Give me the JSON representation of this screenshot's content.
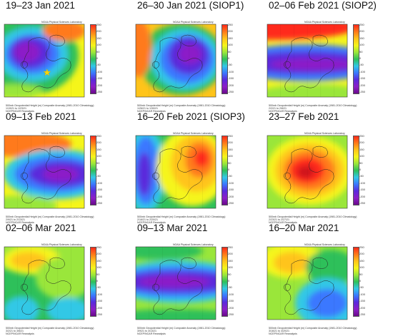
{
  "panels": [
    {
      "title": "19–23 Jan 2021",
      "caption": "500mb Geopotential Height (m) Composite Anomaly (1981-2010 Climatology)",
      "dates": "1/19/21 to 1/23/21",
      "reanalysis": "NCEP/NCAR Reanalysis",
      "source": "NOAA Physical Sciences Laboratory",
      "pattern": "purple-low-west",
      "star": true
    },
    {
      "title": "26–30 Jan 2021 (SIOP1)",
      "caption": "500mb Geopotential Height (m) Composite Anomaly (1981-2010 Climatology)",
      "dates": "1/26/21 to 1/30/21",
      "reanalysis": "NCEP/NCAR Reanalysis",
      "source": "NOAA Physical Sciences Laboratory",
      "pattern": "purple-low-center",
      "star": false
    },
    {
      "title": "02–06 Feb 2021 (SIOP2)",
      "caption": "500mb Geopotential Height (m) Composite Anomaly (1981-2010 Climatology)",
      "dates": "2/2/21 to 2/6/21",
      "reanalysis": "NCEP/NCAR Reanalysis",
      "source": "NOAA Physical Sciences Laboratory",
      "pattern": "zonal-band",
      "star": false
    },
    {
      "title": "09–13 Feb 2021",
      "caption": "500mb Geopotential Height (m) Composite Anomaly (1981-2010 Climatology)",
      "dates": "2/9/21 to 2/13/21",
      "reanalysis": "NCEP/NCAR Reanalysis",
      "source": "NOAA Physical Sciences Laboratory",
      "pattern": "purple-low-east",
      "star": false
    },
    {
      "title": "16–20 Feb 2021 (SIOP3)",
      "caption": "500mb Geopotential Height (m) Composite Anomaly (1981-2010 Climatology)",
      "dates": "2/16/21 to 2/20/21",
      "reanalysis": "NCEP/NCAR Reanalysis",
      "source": "NOAA Physical Sciences Laboratory",
      "pattern": "dipole",
      "star": false
    },
    {
      "title": "23–27 Feb 2021",
      "caption": "500mb Geopotential Height (m) Composite Anomaly (1981-2010 Climatology)",
      "dates": "2/23/21 to 2/27/21",
      "reanalysis": "NCEP/NCAR Reanalysis",
      "source": "NOAA Physical Sciences Laboratory",
      "pattern": "red-high-center",
      "star": false
    },
    {
      "title": "02–06 Mar 2021",
      "caption": "500mb Geopotential Height (m) Composite Anomaly (1981-2010 Climatology)",
      "dates": "3/2/21 to 3/6/21",
      "reanalysis": "NCEP/NCAR Reanalysis",
      "source": "NOAA Physical Sciences Laboratory",
      "pattern": "high-north",
      "star": false
    },
    {
      "title": "09–13 Mar 2021",
      "caption": "500mb Geopotential Height (m) Composite Anomaly (1981-2010 Climatology)",
      "dates": "3/9/21 to 3/13/21",
      "reanalysis": "NCEP/NCAR Reanalysis",
      "source": "NOAA Physical Sciences Laboratory",
      "pattern": "purple-band",
      "star": false
    },
    {
      "title": "16–20 Mar 2021",
      "caption": "500mb Geopotential Height (m) Composite Anomaly (1981-2010 Climatology)",
      "dates": "3/16/21 to 3/20/21",
      "reanalysis": "NCEP/NCAR Reanalysis",
      "source": "NOAA Physical Sciences Laboratory",
      "pattern": "blue-low-south",
      "star": false
    }
  ],
  "colorbar": {
    "ticks": [
      "250",
      "200",
      "150",
      "100",
      "50",
      "0",
      "-50",
      "-100",
      "-150",
      "-200",
      "-250"
    ],
    "colors": [
      "#ff2a1a",
      "#ff7a1a",
      "#ffc41a",
      "#f5f51a",
      "#9ae63a",
      "#2ec05a",
      "#32c8e6",
      "#3a78ff",
      "#5a2adc",
      "#8c1ec8",
      "#6a0a8a"
    ]
  },
  "star_symbol": "★"
}
